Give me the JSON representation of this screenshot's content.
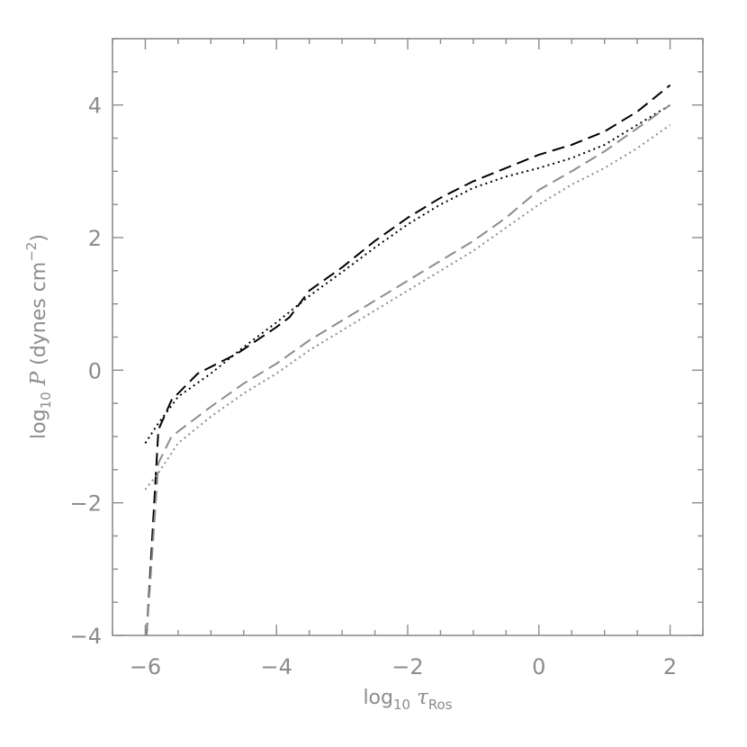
{
  "chart_data": {
    "type": "line",
    "title": "",
    "xlabel": {
      "prefix": "log",
      "prefix_sub": "10",
      "symbol": "τ",
      "symbol_sub": "Ros"
    },
    "ylabel": {
      "prefix": "log",
      "prefix_sub": "10",
      "symbol": "P",
      "units_open": " (dynes cm",
      "units_sup": "−2",
      "units_close": ")"
    },
    "xlim": [
      -6.5,
      2.5
    ],
    "ylim": [
      -4,
      5
    ],
    "xticks": [
      -6,
      -4,
      -2,
      0,
      2
    ],
    "yticks": [
      -4,
      -2,
      0,
      2,
      4
    ],
    "xtick_labels": [
      "−6",
      "−4",
      "−2",
      "0",
      "2"
    ],
    "ytick_labels": [
      "−4",
      "−2",
      "0",
      "2",
      "4"
    ],
    "x_minor_step": 0.5,
    "y_minor_step": 0.5,
    "grid": false,
    "series": [
      {
        "style": "dashed",
        "color": "#000000",
        "points": [
          [
            -5.98,
            -4.0
          ],
          [
            -5.8,
            -0.9
          ],
          [
            -5.6,
            -0.45
          ],
          [
            -5.2,
            -0.05
          ],
          [
            -4.6,
            0.25
          ],
          [
            -4.0,
            0.65
          ],
          [
            -3.8,
            0.8
          ],
          [
            -3.5,
            1.2
          ],
          [
            -3.0,
            1.55
          ],
          [
            -2.5,
            1.95
          ],
          [
            -2.0,
            2.3
          ],
          [
            -1.5,
            2.6
          ],
          [
            -1.0,
            2.85
          ],
          [
            -0.5,
            3.05
          ],
          [
            0.0,
            3.25
          ],
          [
            0.5,
            3.4
          ],
          [
            1.0,
            3.6
          ],
          [
            1.5,
            3.9
          ],
          [
            2.0,
            4.3
          ]
        ]
      },
      {
        "style": "dotted",
        "color": "#000000",
        "points": [
          [
            -6.0,
            -1.1
          ],
          [
            -5.8,
            -0.8
          ],
          [
            -5.5,
            -0.4
          ],
          [
            -5.0,
            -0.05
          ],
          [
            -4.5,
            0.35
          ],
          [
            -4.0,
            0.72
          ],
          [
            -3.5,
            1.12
          ],
          [
            -3.0,
            1.48
          ],
          [
            -2.5,
            1.85
          ],
          [
            -2.0,
            2.2
          ],
          [
            -1.5,
            2.5
          ],
          [
            -1.0,
            2.75
          ],
          [
            -0.5,
            2.92
          ],
          [
            0.0,
            3.05
          ],
          [
            0.5,
            3.2
          ],
          [
            1.0,
            3.4
          ],
          [
            1.5,
            3.7
          ],
          [
            2.0,
            4.0
          ]
        ]
      },
      {
        "style": "dashed",
        "color": "#8c8c8c",
        "points": [
          [
            -5.98,
            -4.0
          ],
          [
            -5.8,
            -1.4
          ],
          [
            -5.6,
            -1.0
          ],
          [
            -5.0,
            -0.55
          ],
          [
            -4.5,
            -0.2
          ],
          [
            -4.0,
            0.1
          ],
          [
            -3.5,
            0.45
          ],
          [
            -3.0,
            0.75
          ],
          [
            -2.5,
            1.05
          ],
          [
            -2.0,
            1.35
          ],
          [
            -1.5,
            1.65
          ],
          [
            -1.0,
            1.95
          ],
          [
            -0.5,
            2.3
          ],
          [
            0.0,
            2.72
          ],
          [
            0.5,
            3.0
          ],
          [
            1.0,
            3.3
          ],
          [
            1.5,
            3.65
          ],
          [
            2.0,
            4.0
          ]
        ]
      },
      {
        "style": "dotted",
        "color": "#8c8c8c",
        "points": [
          [
            -6.0,
            -1.8
          ],
          [
            -5.8,
            -1.55
          ],
          [
            -5.5,
            -1.1
          ],
          [
            -5.0,
            -0.7
          ],
          [
            -4.5,
            -0.35
          ],
          [
            -4.0,
            -0.05
          ],
          [
            -3.5,
            0.3
          ],
          [
            -3.0,
            0.6
          ],
          [
            -2.5,
            0.9
          ],
          [
            -2.0,
            1.2
          ],
          [
            -1.5,
            1.5
          ],
          [
            -1.0,
            1.8
          ],
          [
            -0.5,
            2.15
          ],
          [
            0.0,
            2.5
          ],
          [
            0.5,
            2.8
          ],
          [
            1.0,
            3.05
          ],
          [
            1.5,
            3.35
          ],
          [
            2.0,
            3.7
          ]
        ]
      }
    ]
  }
}
